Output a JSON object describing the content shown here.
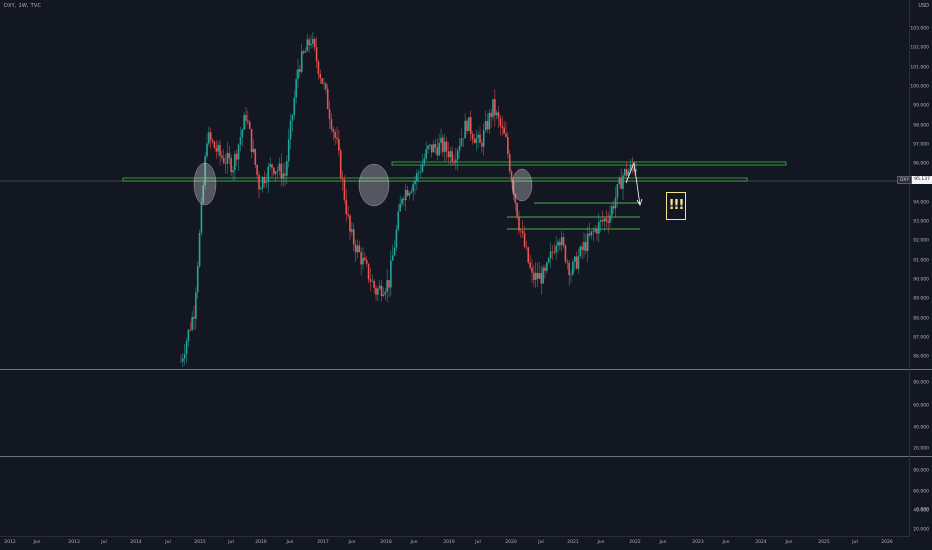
{
  "header": {
    "symbol": "DXY, 1W, TVC",
    "currency": "USD"
  },
  "badge": {
    "symbol": "DXY",
    "price": "95.137"
  },
  "alert_text": "!!!",
  "price_axis": {
    "main": [
      "103.000",
      "102.000",
      "101.000",
      "100.000",
      "99.000",
      "98.000",
      "97.000",
      "96.000",
      "95.000",
      "94.000",
      "93.000",
      "92.000",
      "91.000",
      "90.000",
      "89.000",
      "88.000",
      "87.000",
      "86.000"
    ],
    "lower": [
      "80.000",
      "60.000",
      "40.000",
      "20.000",
      "80.000",
      "60.000",
      "40.000",
      "20.000",
      "0.000"
    ]
  },
  "time_axis": [
    "2012",
    "Jun",
    "2013",
    "Jul",
    "2014",
    "Jul",
    "2015",
    "Jul",
    "2016",
    "Jun",
    "2017",
    "Jun",
    "2018",
    "Jun",
    "2019",
    "Jul",
    "2020",
    "Jul",
    "2021",
    "Jun",
    "2022",
    "Jun",
    "2023",
    "Jun",
    "2024",
    "Jun",
    "2025",
    "Jul",
    "2026"
  ],
  "colors": {
    "background": "#131722",
    "up": "#26a69a",
    "down": "#ef5350",
    "zone": "#4caf50",
    "alert": "#f7e48a"
  },
  "chart_data": {
    "type": "candlestick",
    "symbol": "DXY",
    "interval": "1W",
    "source": "TVC",
    "last_price": 95.137,
    "ylim": [
      85.5,
      104.0
    ],
    "x": [
      "2014-09",
      "2014-12",
      "2015-03",
      "2015-06",
      "2015-09",
      "2015-12",
      "2016-03",
      "2016-06",
      "2016-09",
      "2016-12",
      "2017-01",
      "2017-03",
      "2017-06",
      "2017-09",
      "2018-01",
      "2018-02",
      "2018-04",
      "2018-06",
      "2018-09",
      "2018-12",
      "2019-03",
      "2019-06",
      "2019-09",
      "2019-12",
      "2020-03",
      "2020-06",
      "2020-09",
      "2020-12",
      "2021-01",
      "2021-03",
      "2021-05",
      "2021-06",
      "2021-08",
      "2021-10",
      "2021-11",
      "2021-12"
    ],
    "close": [
      85.9,
      88.5,
      97.5,
      96.5,
      96.0,
      98.6,
      95.0,
      96.0,
      95.5,
      101.0,
      102.5,
      100.0,
      97.0,
      92.5,
      91.0,
      89.5,
      90.0,
      94.5,
      95.2,
      96.8,
      97.0,
      96.5,
      98.2,
      97.0,
      99.0,
      97.2,
      93.0,
      90.2,
      90.3,
      92.5,
      90.5,
      91.8,
      92.8,
      93.5,
      95.5,
      96.0
    ],
    "horizontal_levels": [
      95.0,
      95.7
    ],
    "support_levels": [
      94.0,
      93.2,
      92.6
    ]
  }
}
